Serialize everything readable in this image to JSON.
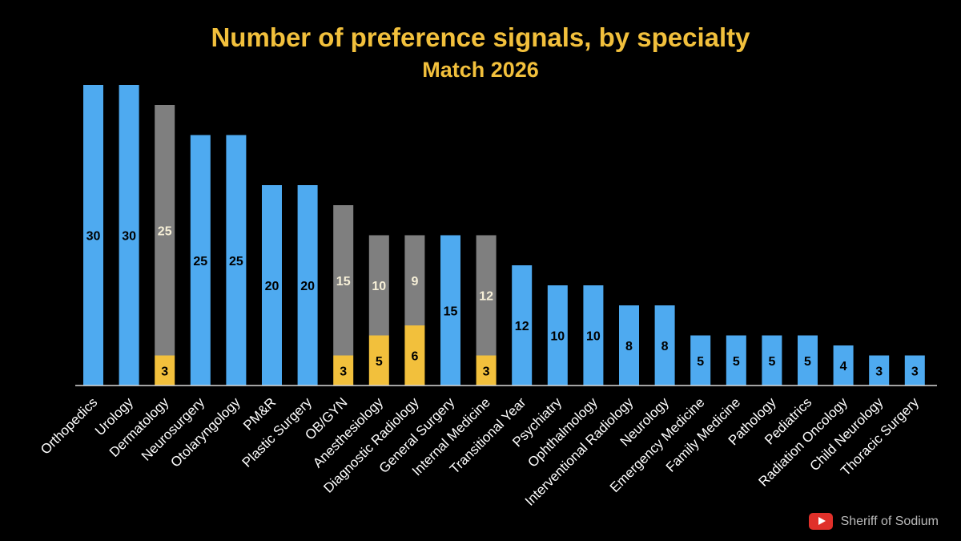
{
  "chart_data": {
    "type": "bar",
    "stacked": true,
    "title": "Number of preference signals, by specialty",
    "subtitle": "Match 2026",
    "xlabel": "",
    "ylabel": "",
    "ylim": [
      0,
      30
    ],
    "grid": false,
    "legend": "none",
    "categories": [
      "Orthopedics",
      "Urology",
      "Dermatology",
      "Neurosurgery",
      "Otolaryngology",
      "PM&R",
      "Plastic Surgery",
      "OB/GYN",
      "Anesthesiology",
      "Diagnostic Radiology",
      "General Surgery",
      "Internal Medicine",
      "Transitional Year",
      "Psychiatry",
      "Ophthalmology",
      "Interventional Radiology",
      "Neurology",
      "Emergency Medicine",
      "Family Medicine",
      "Pathology",
      "Pediatrics",
      "Radiation Oncology",
      "Child Neurology",
      "Thoracic Surgery"
    ],
    "series": [
      {
        "values": [
          30,
          30,
          0,
          25,
          25,
          20,
          20,
          0,
          0,
          0,
          15,
          0,
          12,
          10,
          10,
          8,
          8,
          5,
          5,
          5,
          5,
          4,
          3,
          3
        ],
        "color": "#4eaaf0"
      },
      {
        "values": [
          0,
          0,
          3,
          0,
          0,
          0,
          0,
          3,
          5,
          6,
          0,
          3,
          0,
          0,
          0,
          0,
          0,
          0,
          0,
          0,
          0,
          0,
          0,
          0
        ],
        "color": "#f2c03c"
      },
      {
        "values": [
          0,
          0,
          25,
          0,
          0,
          0,
          0,
          15,
          10,
          9,
          0,
          12,
          0,
          0,
          0,
          0,
          0,
          0,
          0,
          0,
          0,
          0,
          0,
          0
        ],
        "color": "#7f7f7f"
      }
    ],
    "colors": {
      "title": "#f2c03c",
      "axis": "#d9d9d9",
      "label_dark": "#000000",
      "label_light": "#f7f0d8",
      "tick": "#ffffff"
    }
  },
  "watermark": {
    "text": "Sheriff of Sodium",
    "icon": "youtube-icon",
    "icon_color": "#e0302a"
  }
}
